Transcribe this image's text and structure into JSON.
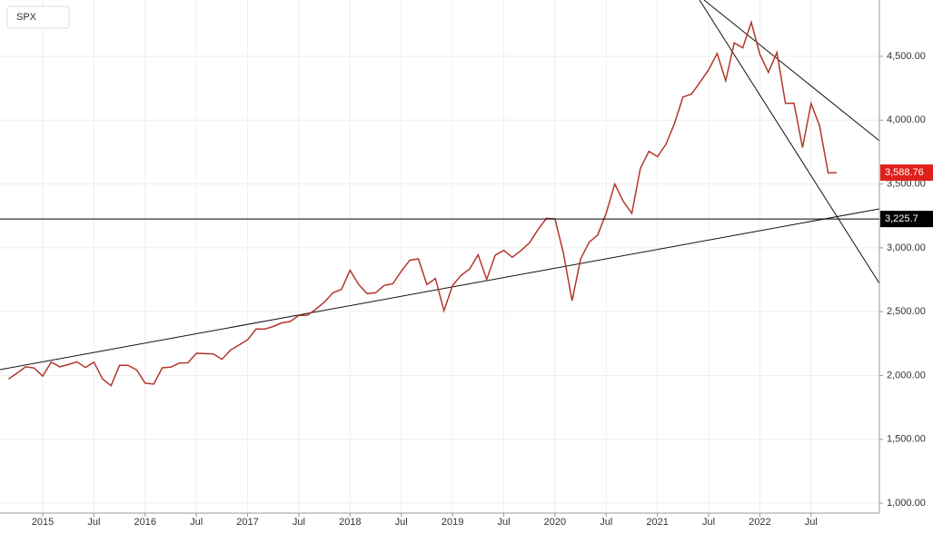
{
  "chart_data": {
    "type": "line",
    "symbol": "SPX",
    "x": [
      "2014-09",
      "2014-10",
      "2014-11",
      "2014-12",
      "2015-01",
      "2015-02",
      "2015-03",
      "2015-04",
      "2015-05",
      "2015-06",
      "2015-07",
      "2015-08",
      "2015-09",
      "2015-10",
      "2015-11",
      "2015-12",
      "2016-01",
      "2016-02",
      "2016-03",
      "2016-04",
      "2016-05",
      "2016-06",
      "2016-07",
      "2016-08",
      "2016-09",
      "2016-10",
      "2016-11",
      "2016-12",
      "2017-01",
      "2017-02",
      "2017-03",
      "2017-04",
      "2017-05",
      "2017-06",
      "2017-07",
      "2017-08",
      "2017-09",
      "2017-10",
      "2017-11",
      "2017-12",
      "2018-01",
      "2018-02",
      "2018-03",
      "2018-04",
      "2018-05",
      "2018-06",
      "2018-07",
      "2018-08",
      "2018-09",
      "2018-10",
      "2018-11",
      "2018-12",
      "2019-01",
      "2019-02",
      "2019-03",
      "2019-04",
      "2019-05",
      "2019-06",
      "2019-07",
      "2019-08",
      "2019-09",
      "2019-10",
      "2019-11",
      "2019-12",
      "2020-01",
      "2020-02",
      "2020-03",
      "2020-04",
      "2020-05",
      "2020-06",
      "2020-07",
      "2020-08",
      "2020-09",
      "2020-10",
      "2020-11",
      "2020-12",
      "2021-01",
      "2021-02",
      "2021-03",
      "2021-04",
      "2021-05",
      "2021-06",
      "2021-07",
      "2021-08",
      "2021-09",
      "2021-10",
      "2021-11",
      "2021-12",
      "2022-01",
      "2022-02",
      "2022-03",
      "2022-04",
      "2022-05",
      "2022-06",
      "2022-07",
      "2022-08",
      "2022-09",
      "2022-10"
    ],
    "series": [
      {
        "name": "SPX",
        "color": "#b3362b",
        "values": [
          1972,
          2018,
          2068,
          2059,
          1995,
          2105,
          2068,
          2086,
          2107,
          2063,
          2104,
          1973,
          1920,
          2079,
          2080,
          2044,
          1940,
          1932,
          2060,
          2065,
          2097,
          2099,
          2174,
          2171,
          2168,
          2126,
          2199,
          2239,
          2279,
          2364,
          2363,
          2384,
          2412,
          2423,
          2470,
          2472,
          2519,
          2575,
          2648,
          2674,
          2824,
          2714,
          2641,
          2648,
          2705,
          2718,
          2816,
          2902,
          2914,
          2712,
          2760,
          2507,
          2704,
          2784,
          2834,
          2946,
          2752,
          2942,
          2980,
          2926,
          2977,
          3038,
          3141,
          3231,
          3226,
          2954,
          2585,
          2912,
          3044,
          3100,
          3271,
          3500,
          3363,
          3270,
          3622,
          3756,
          3714,
          3811,
          3973,
          4181,
          4204,
          4298,
          4395,
          4523,
          4308,
          4605,
          4567,
          4766,
          4516,
          4374,
          4530,
          4132,
          4132,
          3785,
          4130,
          3955,
          3586,
          3588.76
        ]
      }
    ],
    "xlim": [
      "2014-08",
      "2023-03"
    ],
    "xticks": [
      {
        "value": "2015-01",
        "label": "2015"
      },
      {
        "value": "2015-07",
        "label": "Jul"
      },
      {
        "value": "2016-01",
        "label": "2016"
      },
      {
        "value": "2016-07",
        "label": "Jul"
      },
      {
        "value": "2017-01",
        "label": "2017"
      },
      {
        "value": "2017-07",
        "label": "Jul"
      },
      {
        "value": "2018-01",
        "label": "2018"
      },
      {
        "value": "2018-07",
        "label": "Jul"
      },
      {
        "value": "2019-01",
        "label": "2019"
      },
      {
        "value": "2019-07",
        "label": "Jul"
      },
      {
        "value": "2020-01",
        "label": "2020"
      },
      {
        "value": "2020-07",
        "label": "Jul"
      },
      {
        "value": "2021-01",
        "label": "2021"
      },
      {
        "value": "2021-07",
        "label": "Jul"
      },
      {
        "value": "2022-01",
        "label": "2022"
      },
      {
        "value": "2022-07",
        "label": "Jul"
      }
    ],
    "ylim": [
      922,
      4941
    ],
    "yticks": [
      {
        "value": 1000,
        "label": "1,000.00"
      },
      {
        "value": 1500,
        "label": "1,500.00"
      },
      {
        "value": 2000,
        "label": "2,000.00"
      },
      {
        "value": 2500,
        "label": "2,500.00"
      },
      {
        "value": 3000,
        "label": "3,000.00"
      },
      {
        "value": 3500,
        "label": "3,500.00"
      },
      {
        "value": 4000,
        "label": "4,000.00"
      },
      {
        "value": 4500,
        "label": "4,500.00"
      }
    ],
    "grid": true,
    "last_price": {
      "value": 3588.76,
      "label": "3,588.76",
      "color": "#e0201b"
    },
    "horizontal_line": {
      "value": 3225.7,
      "label": "3,225.7",
      "color": "#000000"
    }
  }
}
